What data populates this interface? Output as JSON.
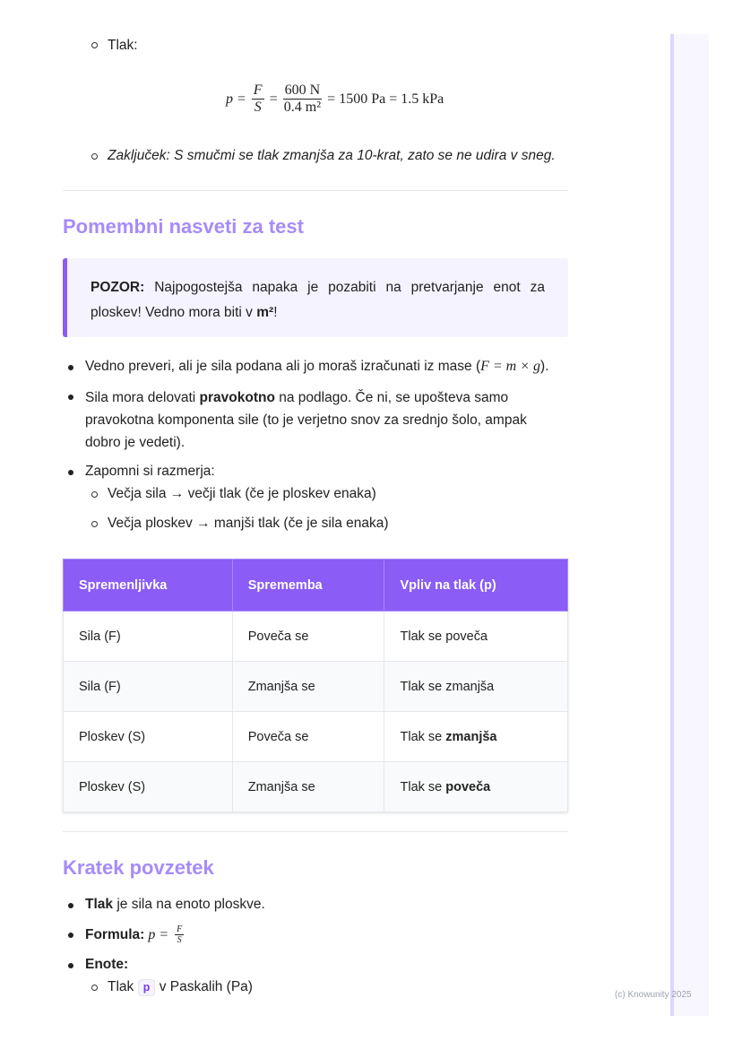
{
  "intro": {
    "item": "Tlak:",
    "formula": {
      "p": "p =",
      "F": "F",
      "S": "S",
      "eq": "=",
      "num": "600 N",
      "den": "0.4 m²",
      "rest": "= 1500 Pa = 1.5 kPa"
    },
    "conclusion": "Zaključek: S smučmi se tlak zmanjša za 10-krat, zato se ne udira v sneg."
  },
  "tips": {
    "heading": "Pomembni nasveti za test",
    "callout": {
      "label": "POZOR:",
      "text": "Najpogostejša napaka je pozabiti na pretvarjanje enot za ploskev! Vedno mora biti v",
      "unit": "m²",
      "end": "!"
    },
    "bullets": [
      [
        "Vedno preveri, ali je sila podana ali jo moraš izračunati iz mase (",
        "F = m × g",
        ")."
      ],
      [
        "Sila mora delovati",
        "pravokotno",
        "na podlago. Če ni, se upošteva samo pravokotna komponenta sile (to je verjetno snov za srednjo šolo, ampak dobro je vedeti)."
      ],
      [
        "Zapomni si razmerja:"
      ]
    ],
    "sub_bullets": [
      "Večja sila → večji tlak (če je ploskev enaka)",
      "Večja ploskev → manjši tlak (če je sila enaka)"
    ]
  },
  "table": {
    "header": [
      "Spremenljivka",
      "Sprememba",
      "Vpliv na tlak (p)"
    ],
    "rows": [
      [
        "Sila (F)",
        "Poveča se",
        [
          "Tlak se poveča"
        ]
      ],
      [
        "Sila (F)",
        "Zmanjša se",
        [
          "Tlak se zmanjša"
        ]
      ],
      [
        "Ploskev (S)",
        "Poveča se",
        [
          "Tlak se",
          "zmanjša"
        ]
      ],
      [
        "Ploskev (S)",
        "Zmanjša se",
        [
          "Tlak se",
          "poveča"
        ]
      ]
    ]
  },
  "summary": {
    "heading": "Kratek povzetek",
    "bullets": [
      [
        "Tlak",
        "je sila na enoto ploskve."
      ],
      [
        "Formula:",
        "p =",
        "F",
        "S"
      ],
      [
        "Enote:"
      ]
    ],
    "sub_bullets": [
      [
        "Tlak",
        "p",
        "v Paskalih (Pa)"
      ]
    ]
  },
  "footer": "(c) Knowunity 2025"
}
